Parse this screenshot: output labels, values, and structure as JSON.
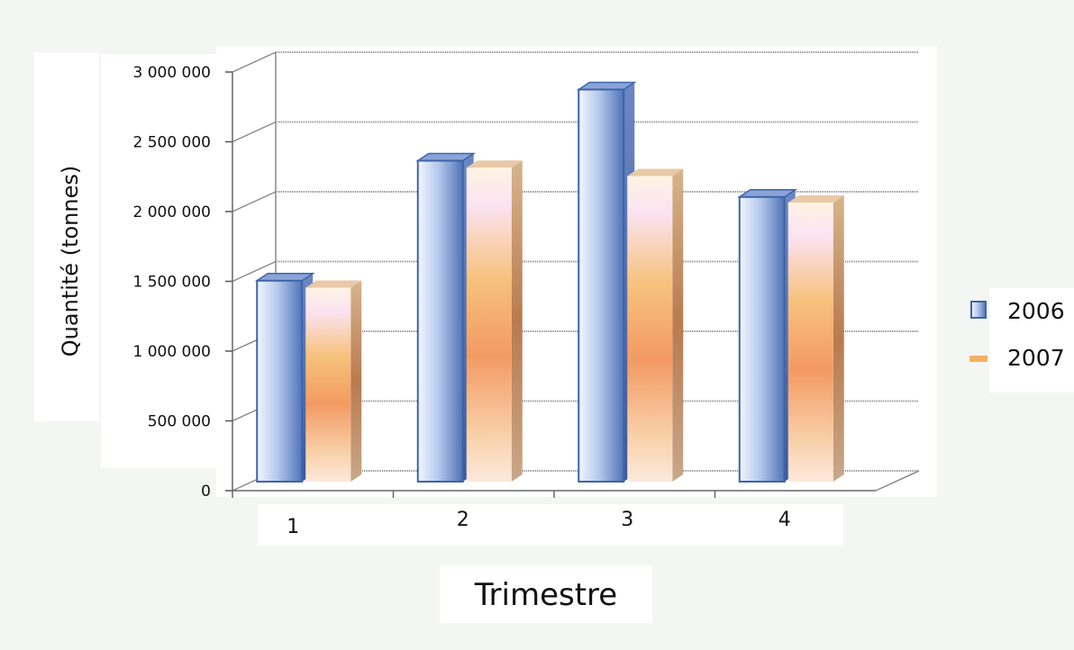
{
  "chart_data": {
    "type": "bar",
    "title": "",
    "xlabel": "Trimestre",
    "ylabel": "Quantité (tonnes)",
    "categories": [
      "1",
      "2",
      "3",
      "4"
    ],
    "series": [
      {
        "name": "2006",
        "values": [
          1440000,
          2300000,
          2810000,
          2040000
        ]
      },
      {
        "name": "2007",
        "values": [
          1390000,
          2250000,
          2190000,
          2000000
        ]
      }
    ],
    "ylim": [
      0,
      3000000
    ],
    "yticks": [
      "0",
      "500 000",
      "1 000 000",
      "1 500 000",
      "2 000 000",
      "2 500 000",
      "3 000 000"
    ],
    "grid": true,
    "legend_position": "right",
    "style": "3d-clustered-column",
    "colors": {
      "2006": "#7f9fd8",
      "2007": "#f3a653",
      "bar_edge": "#3f64a8",
      "background": "#f4f6f4"
    }
  }
}
